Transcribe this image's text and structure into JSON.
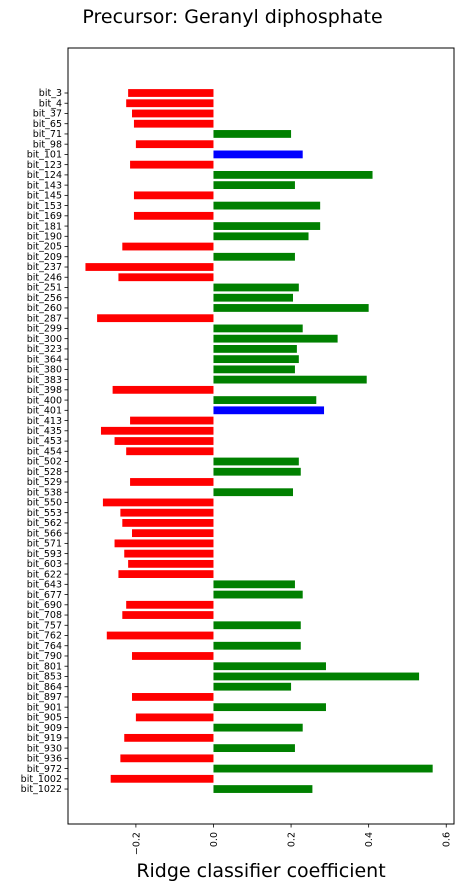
{
  "chart_data": {
    "type": "bar",
    "orientation": "horizontal",
    "title": "Precursor: Geranyl diphosphate",
    "xlabel": "Ridge classifier coefficient",
    "ylabel": "",
    "xlim": [
      -0.375,
      0.62
    ],
    "x_ticks": [
      -0.2,
      0.0,
      0.2,
      0.4,
      0.6
    ],
    "x_tick_labels": [
      "−0.2",
      "0.0",
      "0.2",
      "0.4",
      "0.6"
    ],
    "grid": false,
    "colors": {
      "positive": "#008000",
      "negative": "#ff0000",
      "highlight": "#0000ff"
    },
    "bars": [
      {
        "label": "bit_3",
        "value": -0.22,
        "color": "red"
      },
      {
        "label": "bit_4",
        "value": -0.225,
        "color": "red"
      },
      {
        "label": "bit_37",
        "value": -0.21,
        "color": "red"
      },
      {
        "label": "bit_65",
        "value": -0.205,
        "color": "red"
      },
      {
        "label": "bit_71",
        "value": 0.2,
        "color": "green"
      },
      {
        "label": "bit_98",
        "value": -0.2,
        "color": "red"
      },
      {
        "label": "bit_101",
        "value": 0.23,
        "color": "blue"
      },
      {
        "label": "bit_123",
        "value": -0.215,
        "color": "red"
      },
      {
        "label": "bit_124",
        "value": 0.41,
        "color": "green"
      },
      {
        "label": "bit_143",
        "value": 0.21,
        "color": "green"
      },
      {
        "label": "bit_145",
        "value": -0.205,
        "color": "red"
      },
      {
        "label": "bit_153",
        "value": 0.275,
        "color": "green"
      },
      {
        "label": "bit_169",
        "value": -0.205,
        "color": "red"
      },
      {
        "label": "bit_181",
        "value": 0.275,
        "color": "green"
      },
      {
        "label": "bit_190",
        "value": 0.245,
        "color": "green"
      },
      {
        "label": "bit_205",
        "value": -0.235,
        "color": "red"
      },
      {
        "label": "bit_209",
        "value": 0.21,
        "color": "green"
      },
      {
        "label": "bit_237",
        "value": -0.33,
        "color": "red"
      },
      {
        "label": "bit_246",
        "value": -0.245,
        "color": "red"
      },
      {
        "label": "bit_251",
        "value": 0.22,
        "color": "green"
      },
      {
        "label": "bit_256",
        "value": 0.205,
        "color": "green"
      },
      {
        "label": "bit_260",
        "value": 0.4,
        "color": "green"
      },
      {
        "label": "bit_287",
        "value": -0.3,
        "color": "red"
      },
      {
        "label": "bit_299",
        "value": 0.23,
        "color": "green"
      },
      {
        "label": "bit_300",
        "value": 0.32,
        "color": "green"
      },
      {
        "label": "bit_323",
        "value": 0.215,
        "color": "green"
      },
      {
        "label": "bit_364",
        "value": 0.22,
        "color": "green"
      },
      {
        "label": "bit_380",
        "value": 0.21,
        "color": "green"
      },
      {
        "label": "bit_383",
        "value": 0.395,
        "color": "green"
      },
      {
        "label": "bit_398",
        "value": -0.26,
        "color": "red"
      },
      {
        "label": "bit_400",
        "value": 0.265,
        "color": "green"
      },
      {
        "label": "bit_401",
        "value": 0.285,
        "color": "blue"
      },
      {
        "label": "bit_413",
        "value": -0.215,
        "color": "red"
      },
      {
        "label": "bit_435",
        "value": -0.29,
        "color": "red"
      },
      {
        "label": "bit_453",
        "value": -0.255,
        "color": "red"
      },
      {
        "label": "bit_454",
        "value": -0.225,
        "color": "red"
      },
      {
        "label": "bit_502",
        "value": 0.22,
        "color": "green"
      },
      {
        "label": "bit_528",
        "value": 0.225,
        "color": "green"
      },
      {
        "label": "bit_529",
        "value": -0.215,
        "color": "red"
      },
      {
        "label": "bit_538",
        "value": 0.205,
        "color": "green"
      },
      {
        "label": "bit_550",
        "value": -0.285,
        "color": "red"
      },
      {
        "label": "bit_553",
        "value": -0.24,
        "color": "red"
      },
      {
        "label": "bit_562",
        "value": -0.235,
        "color": "red"
      },
      {
        "label": "bit_566",
        "value": -0.21,
        "color": "red"
      },
      {
        "label": "bit_571",
        "value": -0.255,
        "color": "red"
      },
      {
        "label": "bit_593",
        "value": -0.23,
        "color": "red"
      },
      {
        "label": "bit_603",
        "value": -0.22,
        "color": "red"
      },
      {
        "label": "bit_622",
        "value": -0.245,
        "color": "red"
      },
      {
        "label": "bit_643",
        "value": 0.21,
        "color": "green"
      },
      {
        "label": "bit_677",
        "value": 0.23,
        "color": "green"
      },
      {
        "label": "bit_690",
        "value": -0.225,
        "color": "red"
      },
      {
        "label": "bit_708",
        "value": -0.235,
        "color": "red"
      },
      {
        "label": "bit_757",
        "value": 0.225,
        "color": "green"
      },
      {
        "label": "bit_762",
        "value": -0.275,
        "color": "red"
      },
      {
        "label": "bit_764",
        "value": 0.225,
        "color": "green"
      },
      {
        "label": "bit_790",
        "value": -0.21,
        "color": "red"
      },
      {
        "label": "bit_801",
        "value": 0.29,
        "color": "green"
      },
      {
        "label": "bit_853",
        "value": 0.53,
        "color": "green"
      },
      {
        "label": "bit_864",
        "value": 0.2,
        "color": "green"
      },
      {
        "label": "bit_897",
        "value": -0.21,
        "color": "red"
      },
      {
        "label": "bit_901",
        "value": 0.29,
        "color": "green"
      },
      {
        "label": "bit_905",
        "value": -0.2,
        "color": "red"
      },
      {
        "label": "bit_909",
        "value": 0.23,
        "color": "green"
      },
      {
        "label": "bit_919",
        "value": -0.23,
        "color": "red"
      },
      {
        "label": "bit_930",
        "value": 0.21,
        "color": "green"
      },
      {
        "label": "bit_936",
        "value": -0.24,
        "color": "red"
      },
      {
        "label": "bit_972",
        "value": 0.565,
        "color": "green"
      },
      {
        "label": "bit_1002",
        "value": -0.265,
        "color": "red"
      },
      {
        "label": "bit_1022",
        "value": 0.255,
        "color": "green"
      }
    ]
  }
}
